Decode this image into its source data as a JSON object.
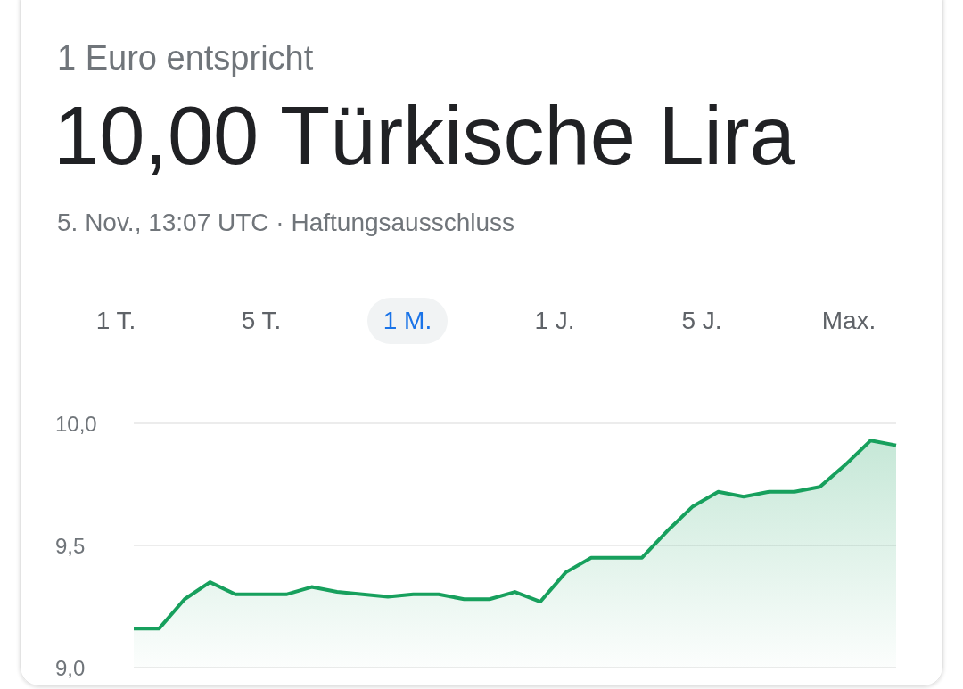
{
  "chart_data": {
    "type": "area",
    "subtitle": "1 Euro entspricht",
    "title": "10,00 Türkische Lira",
    "annotations": [
      "5. Nov., 13:07 UTC · Haftungsausschluss",
      "1 T.",
      "5 T.",
      "1 M.",
      "1 J.",
      "5 J.",
      "Max."
    ],
    "categories": [
      null,
      null,
      null,
      null,
      null,
      null,
      null,
      null,
      null,
      null,
      null,
      null,
      null,
      null,
      null,
      null,
      null,
      null,
      null,
      null,
      null,
      null,
      null,
      null,
      null,
      null,
      null,
      null,
      null,
      null,
      null
    ],
    "series": [
      {
        "color": "#17a05d",
        "values": [
          9.16,
          9.16,
          9.28,
          9.35,
          9.3,
          9.3,
          9.3,
          9.33,
          9.31,
          9.3,
          9.29,
          9.3,
          9.3,
          9.28,
          9.28,
          9.31,
          9.27,
          9.39,
          9.45,
          9.45,
          9.45,
          9.56,
          9.66,
          9.72,
          9.7,
          9.72,
          9.72,
          9.74,
          9.83,
          9.93,
          9.91
        ]
      }
    ],
    "ylim": [
      9.0,
      10.0
    ],
    "yticks": [
      {
        "value": 9.0,
        "label": "9,0"
      },
      {
        "value": 9.5,
        "label": "9,5"
      },
      {
        "value": 10.0,
        "label": "10,0"
      }
    ],
    "tick_labels": "y",
    "grid": "y",
    "marker": "none",
    "line_style": "solid"
  }
}
